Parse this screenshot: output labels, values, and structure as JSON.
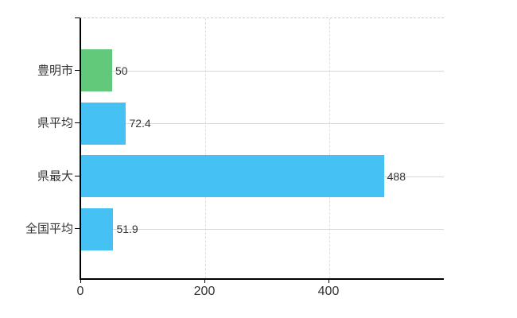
{
  "chart_data": {
    "type": "bar",
    "orientation": "horizontal",
    "title": "",
    "xlabel": "",
    "ylabel": "",
    "categories": [
      "豊明市",
      "県平均",
      "県最大",
      "全国平均"
    ],
    "values": [
      50,
      72.4,
      488,
      51.9
    ],
    "value_labels": [
      "50",
      "72.4",
      "488",
      "51.9"
    ],
    "bar_colors": [
      "#63c97a",
      "#46c1f3",
      "#46c1f3",
      "#46c1f3"
    ],
    "xticks": [
      0,
      200,
      400
    ],
    "xtick_labels": [
      "0",
      "200",
      "400"
    ],
    "xlim": [
      0,
      585
    ],
    "grid": true,
    "legend": false
  },
  "colors": {
    "background": "#ffffff",
    "bar_green": "#63c97a",
    "bar_blue": "#46c1f3",
    "axis": "#000000",
    "grid_horizontal": "#d4dbd2",
    "grid_vertical": "#dedede",
    "plot_top_border": "#cfcfcf",
    "text": "#333333"
  }
}
